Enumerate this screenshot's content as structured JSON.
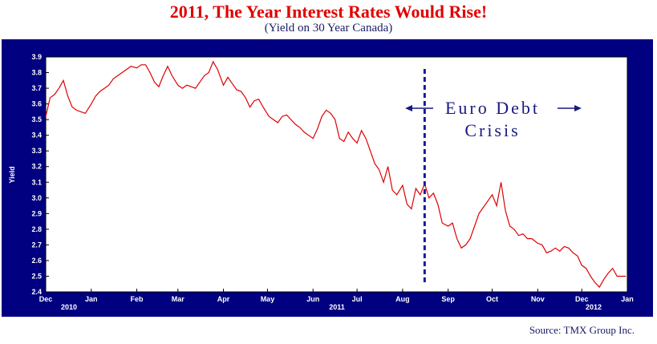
{
  "title": "2011, The Year Interest Rates Would Rise!",
  "subtitle": "(Yield on 30 Year Canada)",
  "source": "Source: TMX Group Inc.",
  "colors": {
    "frame": "#000080",
    "line": "#e00000",
    "marker": "#1a1a99"
  },
  "chart_data": {
    "type": "line",
    "title": "2011, The Year Interest Rates Would Rise!",
    "subtitle": "(Yield on 30 Year Canada)",
    "ylabel": "Yield",
    "xlabel": "",
    "ylim": [
      2.4,
      3.9
    ],
    "yticks": [
      "3.9",
      "3.8",
      "3.7",
      "3.6",
      "3.5",
      "3.4",
      "3.3",
      "3.2",
      "3.1",
      "3.0",
      "2.9",
      "2.8",
      "2.7",
      "2.6",
      "2.5",
      "2.4"
    ],
    "xticks": [
      "Dec",
      "Jan",
      "Feb",
      "Mar",
      "Apr",
      "May",
      "Jun",
      "Jul",
      "Aug",
      "Sep",
      "Oct",
      "Nov",
      "Dec",
      "Jan"
    ],
    "year_labels": [
      "2010",
      "2011",
      "2012"
    ],
    "grid": false,
    "series": [
      {
        "x": [
          "2010-12-01",
          "2010-12-04",
          "2010-12-07",
          "2010-12-10",
          "2010-12-13",
          "2010-12-16",
          "2010-12-19",
          "2010-12-22",
          "2010-12-25",
          "2010-12-28",
          "2011-01-01",
          "2011-01-04",
          "2011-01-07",
          "2011-01-10",
          "2011-01-13",
          "2011-01-16",
          "2011-01-19",
          "2011-01-22",
          "2011-01-25",
          "2011-01-28",
          "2011-02-01",
          "2011-02-04",
          "2011-02-07",
          "2011-02-10",
          "2011-02-13",
          "2011-02-16",
          "2011-02-19",
          "2011-02-22",
          "2011-02-25",
          "2011-03-01",
          "2011-03-04",
          "2011-03-07",
          "2011-03-10",
          "2011-03-13",
          "2011-03-16",
          "2011-03-19",
          "2011-03-22",
          "2011-03-25",
          "2011-03-28",
          "2011-04-01",
          "2011-04-04",
          "2011-04-07",
          "2011-04-10",
          "2011-04-13",
          "2011-04-16",
          "2011-04-19",
          "2011-04-22",
          "2011-04-25",
          "2011-04-28",
          "2011-05-02",
          "2011-05-05",
          "2011-05-08",
          "2011-05-11",
          "2011-05-14",
          "2011-05-17",
          "2011-05-20",
          "2011-05-23",
          "2011-05-26",
          "2011-06-01",
          "2011-06-04",
          "2011-06-07",
          "2011-06-10",
          "2011-06-13",
          "2011-06-16",
          "2011-06-19",
          "2011-06-22",
          "2011-06-25",
          "2011-06-28",
          "2011-07-01",
          "2011-07-04",
          "2011-07-07",
          "2011-07-10",
          "2011-07-13",
          "2011-07-16",
          "2011-07-19",
          "2011-07-22",
          "2011-07-25",
          "2011-07-28",
          "2011-08-01",
          "2011-08-04",
          "2011-08-07",
          "2011-08-10",
          "2011-08-13",
          "2011-08-16",
          "2011-08-19",
          "2011-08-22",
          "2011-08-25",
          "2011-08-28",
          "2011-09-01",
          "2011-09-04",
          "2011-09-07",
          "2011-09-10",
          "2011-09-13",
          "2011-09-16",
          "2011-09-19",
          "2011-09-22",
          "2011-09-25",
          "2011-09-28",
          "2011-10-01",
          "2011-10-04",
          "2011-10-07",
          "2011-10-10",
          "2011-10-13",
          "2011-10-16",
          "2011-10-19",
          "2011-10-22",
          "2011-10-25",
          "2011-10-28",
          "2011-11-01",
          "2011-11-04",
          "2011-11-07",
          "2011-11-10",
          "2011-11-13",
          "2011-11-16",
          "2011-11-19",
          "2011-11-22",
          "2011-11-25",
          "2011-11-28",
          "2011-12-01",
          "2011-12-04",
          "2011-12-07",
          "2011-12-10",
          "2011-12-13",
          "2011-12-16",
          "2011-12-19",
          "2011-12-22",
          "2011-12-25",
          "2011-12-28",
          "2011-12-31"
        ],
        "y": [
          3.52,
          3.64,
          3.66,
          3.7,
          3.75,
          3.65,
          3.58,
          3.56,
          3.55,
          3.54,
          3.6,
          3.65,
          3.68,
          3.7,
          3.72,
          3.76,
          3.78,
          3.8,
          3.82,
          3.84,
          3.83,
          3.85,
          3.85,
          3.8,
          3.74,
          3.71,
          3.78,
          3.84,
          3.78,
          3.72,
          3.7,
          3.72,
          3.71,
          3.7,
          3.74,
          3.78,
          3.8,
          3.87,
          3.82,
          3.72,
          3.77,
          3.73,
          3.69,
          3.68,
          3.64,
          3.58,
          3.62,
          3.63,
          3.58,
          3.52,
          3.5,
          3.48,
          3.52,
          3.53,
          3.5,
          3.47,
          3.45,
          3.42,
          3.38,
          3.44,
          3.52,
          3.56,
          3.54,
          3.5,
          3.38,
          3.36,
          3.42,
          3.38,
          3.35,
          3.43,
          3.38,
          3.3,
          3.22,
          3.18,
          3.1,
          3.2,
          3.05,
          3.02,
          3.08,
          2.96,
          2.93,
          3.06,
          3.02,
          3.09,
          3.0,
          3.03,
          2.96,
          2.84,
          2.82,
          2.84,
          2.74,
          2.68,
          2.7,
          2.74,
          2.82,
          2.9,
          2.94,
          2.98,
          3.02,
          2.95,
          3.1,
          2.92,
          2.82,
          2.8,
          2.76,
          2.77,
          2.74,
          2.74,
          2.71,
          2.7,
          2.65,
          2.66,
          2.68,
          2.66,
          2.69,
          2.68,
          2.65,
          2.63,
          2.57,
          2.55,
          2.5,
          2.46,
          2.43,
          2.48,
          2.52,
          2.55,
          2.5,
          2.5,
          2.5
        ]
      }
    ],
    "annotations": [
      {
        "x": "2011-08-16",
        "type": "vertical-dashed-line"
      },
      {
        "text_lines": [
          "Euro Debt",
          "Crisis"
        ],
        "arrows": [
          "left",
          "right"
        ]
      }
    ]
  },
  "annotation": {
    "line1": "Euro Debt",
    "line2": "Crisis"
  }
}
